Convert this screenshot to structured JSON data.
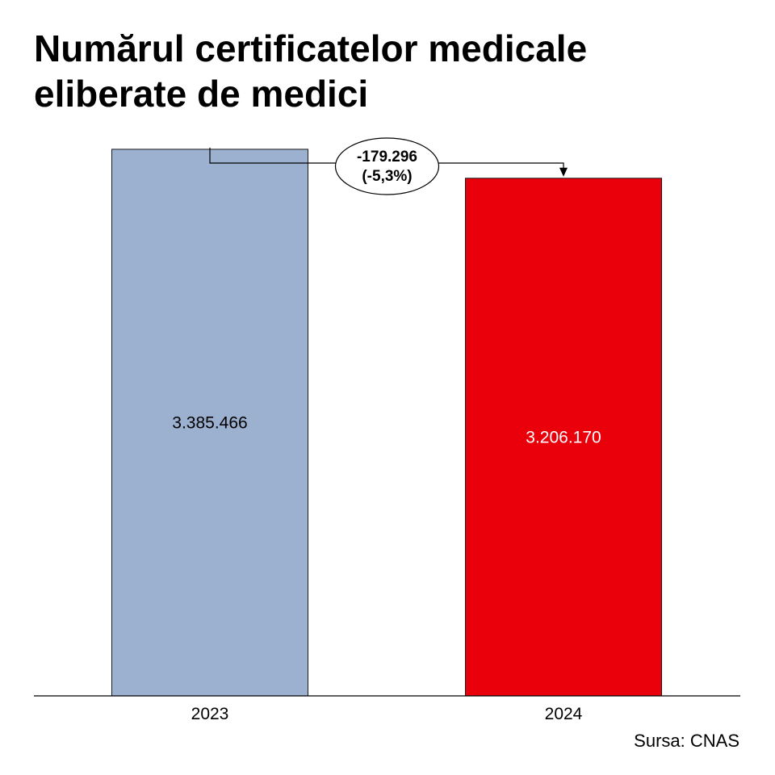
{
  "chart_data": {
    "type": "bar",
    "title": "Numărul certificatelor medicale eliberate de medici",
    "categories": [
      "2023",
      "2024"
    ],
    "values": [
      3385466,
      3206170
    ],
    "value_labels": [
      "3.385.466",
      "3.206.170"
    ],
    "bar_colors": [
      "#9cb0cf",
      "#ea000b"
    ],
    "value_label_colors": [
      "#000000",
      "#ffffff"
    ],
    "ylim": [
      0,
      4000000
    ],
    "grid": false,
    "legend": false,
    "annotation": {
      "line1": "-179.296",
      "line2": "(-5,3%)"
    },
    "source": "Sursa: CNAS"
  }
}
